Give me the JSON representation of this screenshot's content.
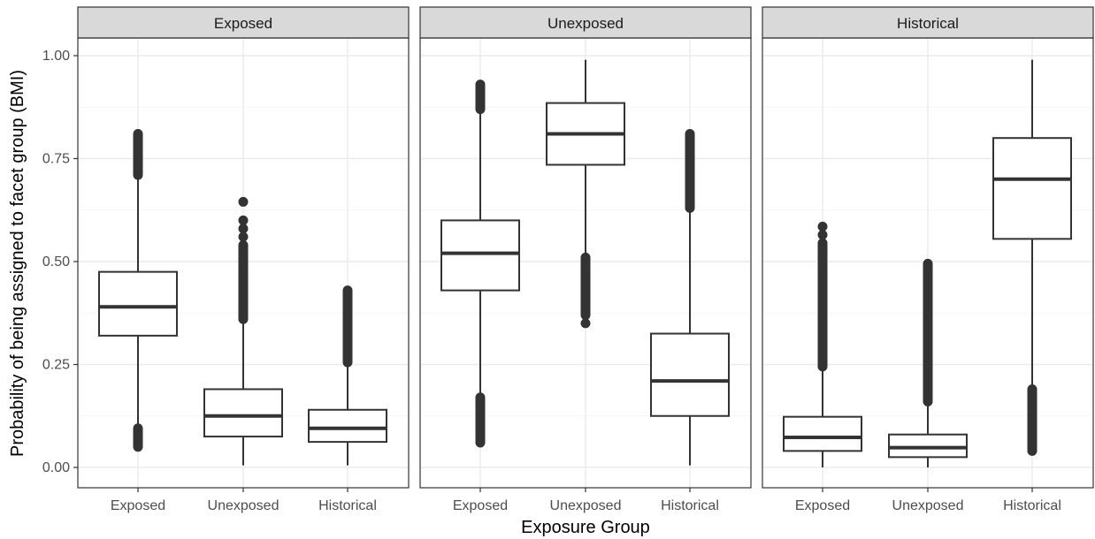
{
  "chart_data": {
    "type": "boxplot",
    "xlabel": "Exposure Group",
    "ylabel": "Probability of being assigned to facet group (BMI)",
    "ylim": [
      0,
      1.0
    ],
    "y_ticks": [
      "0.00",
      "0.25",
      "0.50",
      "0.75",
      "1.00"
    ],
    "y_tick_values": [
      0,
      0.25,
      0.5,
      0.75,
      1.0
    ],
    "categories": [
      "Exposed",
      "Unexposed",
      "Historical"
    ],
    "grid": true,
    "colors": {
      "panel_border": "#333333",
      "strip_fill": "#d9d9d9",
      "grid": "#ebebeb",
      "box": "#333333"
    },
    "facets": [
      {
        "label": "Exposed",
        "boxes": [
          {
            "category": "Exposed",
            "whisker_low": 0.1,
            "q1": 0.32,
            "median": 0.39,
            "q3": 0.475,
            "whisker_high": 0.7,
            "outliers_low": [
              0.05,
              0.095
            ],
            "outliers_high": [
              0.71,
              0.81
            ]
          },
          {
            "category": "Unexposed",
            "whisker_low": 0.005,
            "q1": 0.075,
            "median": 0.125,
            "q3": 0.19,
            "whisker_high": 0.36,
            "outliers_low": [],
            "outliers_high": [
              0.36,
              0.54
            ],
            "outliers_extra": [
              0.56,
              0.58,
              0.6,
              0.645
            ]
          },
          {
            "category": "Historical",
            "whisker_low": 0.005,
            "q1": 0.062,
            "median": 0.095,
            "q3": 0.14,
            "whisker_high": 0.255,
            "outliers_low": [],
            "outliers_high": [
              0.255,
              0.43
            ]
          }
        ]
      },
      {
        "label": "Unexposed",
        "boxes": [
          {
            "category": "Exposed",
            "whisker_low": 0.17,
            "q1": 0.43,
            "median": 0.52,
            "q3": 0.6,
            "whisker_high": 0.87,
            "outliers_low": [
              0.06,
              0.17
            ],
            "outliers_high": [
              0.87,
              0.93
            ]
          },
          {
            "category": "Unexposed",
            "whisker_low": 0.51,
            "q1": 0.735,
            "median": 0.81,
            "q3": 0.885,
            "whisker_high": 0.99,
            "outliers_low": [
              0.37,
              0.51
            ],
            "outliers_extra": [
              0.35
            ]
          },
          {
            "category": "Historical",
            "whisker_low": 0.005,
            "q1": 0.125,
            "median": 0.21,
            "q3": 0.325,
            "whisker_high": 0.63,
            "outliers_low": [],
            "outliers_high": [
              0.63,
              0.81
            ]
          }
        ]
      },
      {
        "label": "Historical",
        "boxes": [
          {
            "category": "Exposed",
            "whisker_low": 0.0,
            "q1": 0.04,
            "median": 0.073,
            "q3": 0.123,
            "whisker_high": 0.245,
            "outliers_low": [],
            "outliers_high": [
              0.245,
              0.545
            ],
            "outliers_extra": [
              0.565,
              0.585
            ]
          },
          {
            "category": "Unexposed",
            "whisker_low": 0.0,
            "q1": 0.025,
            "median": 0.048,
            "q3": 0.08,
            "whisker_high": 0.16,
            "outliers_low": [],
            "outliers_high": [
              0.16,
              0.495
            ]
          },
          {
            "category": "Historical",
            "whisker_low": 0.19,
            "q1": 0.555,
            "median": 0.7,
            "q3": 0.8,
            "whisker_high": 0.99,
            "outliers_low": [
              0.04,
              0.19
            ]
          }
        ]
      }
    ]
  }
}
